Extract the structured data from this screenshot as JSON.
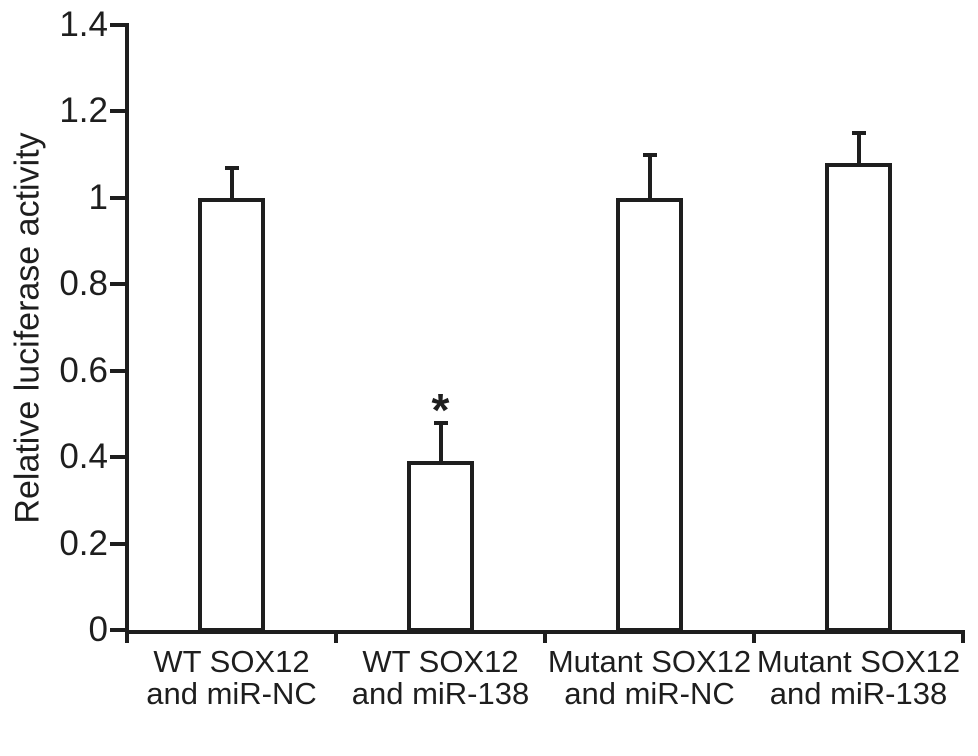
{
  "figure": {
    "background": "#ffffff",
    "ink_color": "#1e1e1e"
  },
  "chart_data": {
    "type": "bar",
    "title": "",
    "xlabel": "",
    "ylabel": "Relative luciferase activity",
    "categories": [
      "WT SOX12 and miR-NC",
      "WT SOX12 and miR-138",
      "Mutant SOX12 and miR-NC",
      "Mutant SOX12 and miR-138"
    ],
    "category_lines": [
      [
        "WT SOX12",
        "and miR-NC"
      ],
      [
        "WT SOX12",
        "and miR-138"
      ],
      [
        "Mutant SOX12",
        "and miR-NC"
      ],
      [
        "Mutant SOX12",
        "and miR-138"
      ]
    ],
    "values": [
      1.0,
      0.39,
      1.0,
      1.08
    ],
    "errors": [
      0.07,
      0.09,
      0.1,
      0.07
    ],
    "significance": [
      "",
      "*",
      "",
      ""
    ],
    "ylim": [
      0,
      1.4
    ],
    "yticks": [
      0,
      0.2,
      0.4,
      0.6,
      0.8,
      1,
      1.2,
      1.4
    ],
    "ytick_labels": [
      "0",
      "0.2",
      "0.4",
      "0.6",
      "0.8",
      "1",
      "1.2",
      "1.4"
    ],
    "bar_fill": "#ffffff",
    "bar_border": "#1e1e1e",
    "grid": false,
    "legend": null
  }
}
